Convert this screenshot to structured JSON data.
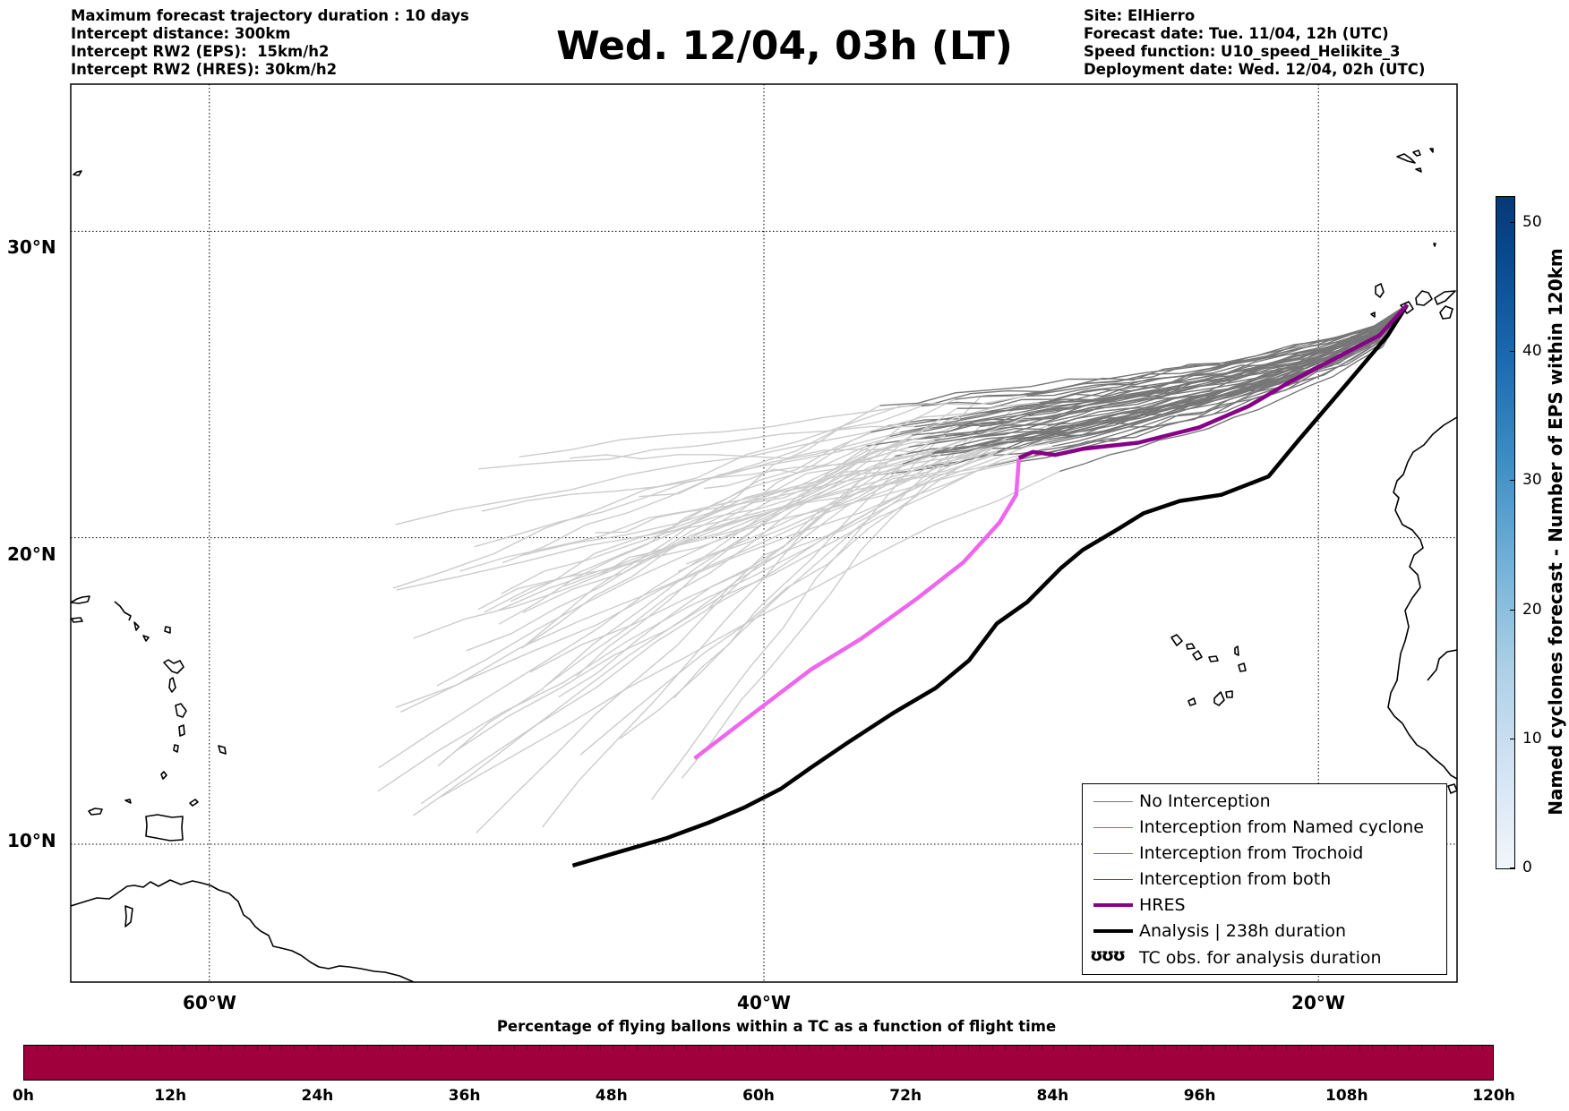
{
  "header_left": [
    "Maximum forecast trajectory duration : 10 days",
    "Intercept distance: 300km",
    "Intercept RW2 (EPS):  15km/h2",
    "Intercept RW2 (HRES): 30km/h2"
  ],
  "title": "Wed. 12/04, 03h (LT)",
  "header_right": [
    "Site: ElHierro",
    "Forecast date: Tue. 11/04, 12h (UTC)",
    "Speed function: U10_speed_Helikite_3",
    "Deployment date: Wed. 12/04, 02h (UTC)"
  ],
  "map": {
    "lat_labels": [
      "30°N",
      "20°N",
      "10°N"
    ],
    "lon_labels": [
      "60°W",
      "40°W",
      "20°W"
    ],
    "lat_range": [
      5.5,
      34.8
    ],
    "lon_range": [
      -65,
      -15
    ],
    "grid": true,
    "colors": {
      "no_interception_late": "#777777",
      "no_interception_early": "#cccccc",
      "named_cyclone": "#ff4d00",
      "trochoid": "#808000",
      "both": "#008000",
      "hres_late": "#880088",
      "hres_early": "#ee66ee",
      "analysis": "#000000",
      "coast": "#000000"
    },
    "hres_track": [
      [
        -16.8,
        27.6
      ],
      [
        -17.8,
        26.6
      ],
      [
        -19.3,
        25.9
      ],
      [
        -21,
        25.1
      ],
      [
        -22.5,
        24.3
      ],
      [
        -24.3,
        23.6
      ],
      [
        -26.5,
        23.1
      ],
      [
        -28.5,
        22.9
      ],
      [
        -29.5,
        22.7
      ],
      [
        -30.3,
        22.8
      ],
      [
        -30.8,
        22.6
      ],
      [
        -30.9,
        21.4
      ],
      [
        -31.5,
        20.5
      ],
      [
        -32.8,
        19.2
      ],
      [
        -34.5,
        18
      ],
      [
        -36.5,
        16.7
      ],
      [
        -38.3,
        15.7
      ],
      [
        -39.9,
        14.6
      ],
      [
        -42.5,
        12.8
      ]
    ],
    "analysis_track": [
      [
        -16.8,
        27.6
      ],
      [
        -17.5,
        26.6
      ],
      [
        -19,
        25
      ],
      [
        -20.7,
        23.2
      ],
      [
        -21.8,
        22
      ],
      [
        -23.5,
        21.4
      ],
      [
        -25,
        21.2
      ],
      [
        -26.3,
        20.8
      ],
      [
        -27.2,
        20.3
      ],
      [
        -28.5,
        19.6
      ],
      [
        -29.3,
        19
      ],
      [
        -30.5,
        17.9
      ],
      [
        -31.6,
        17.2
      ],
      [
        -32.6,
        16
      ],
      [
        -33.8,
        15.1
      ],
      [
        -35.3,
        14.3
      ],
      [
        -37,
        13.3
      ],
      [
        -38.3,
        12.5
      ],
      [
        -39.4,
        11.8
      ],
      [
        -40.7,
        11.2
      ],
      [
        -42,
        10.7
      ],
      [
        -43.5,
        10.2
      ],
      [
        -45.4,
        9.7
      ],
      [
        -46.9,
        9.3
      ]
    ],
    "legend": {
      "no_interception": "No Interception",
      "named_cyclone": "Interception from Named cyclone",
      "trochoid": "Interception from Trochoid",
      "both": "Interception from both",
      "hres": "HRES",
      "analysis": "Analysis | 238h duration",
      "tc_obs": "TC obs. for analysis duration",
      "tc_obs_icon": "ʊʊʊ"
    }
  },
  "colorbar": {
    "label": "Named cyclones forecast - Number of EPS within 120km",
    "ticks": [
      "0",
      "10",
      "20",
      "30",
      "40",
      "50"
    ],
    "range": [
      0,
      52
    ]
  },
  "bottom_bar": {
    "title": "Percentage of flying ballons within a TC as a function of flight time",
    "color": "#a0003c",
    "ticks": [
      "0h",
      "12h",
      "24h",
      "36h",
      "48h",
      "60h",
      "72h",
      "84h",
      "96h",
      "108h",
      "120h"
    ]
  }
}
